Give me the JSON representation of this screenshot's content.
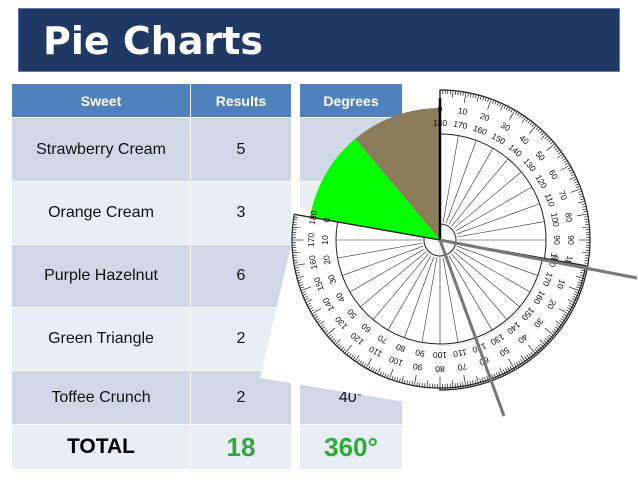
{
  "slide": {
    "title": "Pie Charts"
  },
  "table": {
    "headers": {
      "sweet": "Sweet",
      "results": "Results",
      "degrees": "Degrees"
    },
    "rows": [
      {
        "sweet": "Strawberry Cream",
        "result": "5",
        "degrees": ""
      },
      {
        "sweet": "Orange Cream",
        "result": "3",
        "degrees": ""
      },
      {
        "sweet": "Purple Hazelnut",
        "result": "6",
        "degrees": ""
      },
      {
        "sweet": "Green Triangle",
        "result": "2",
        "degrees": ""
      },
      {
        "sweet": "Toffee Crunch",
        "result": "2",
        "degrees": "40°"
      }
    ],
    "total": {
      "label": "TOTAL",
      "results": "18",
      "degrees": "360°"
    }
  },
  "pie": {
    "colors": {
      "olive_slice": "#8b7d59",
      "green_slice": "#00ff00"
    },
    "olive_slice_degrees": 40,
    "green_slice_degrees": 40
  },
  "protractor": {
    "tick_labels": [
      "0",
      "10",
      "20",
      "30",
      "40",
      "50",
      "60",
      "70",
      "80",
      "90",
      "100",
      "110",
      "120",
      "130",
      "140",
      "150",
      "160",
      "170",
      "180"
    ]
  }
}
